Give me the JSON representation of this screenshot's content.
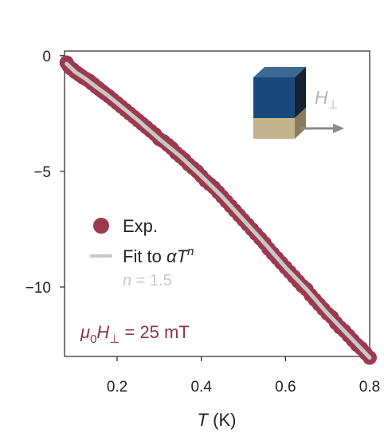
{
  "chart_data": {
    "type": "scatter",
    "xlabel_symbol": "T",
    "xlabel_unit": "(K)",
    "ylabel": "",
    "xlim": [
      0.075,
      0.8
    ],
    "ylim": [
      -13,
      0.2
    ],
    "xticks": [
      0.2,
      0.4,
      0.6,
      0.8
    ],
    "xtick_labels": [
      "0.2",
      "0.4",
      "0.6",
      "0.8"
    ],
    "yticks": [
      0,
      -5,
      -10
    ],
    "ytick_labels": [
      "0",
      "−5",
      "−10"
    ],
    "grid": false,
    "legend_position": "center-left",
    "series": [
      {
        "name": "Exp.",
        "kind": "scatter",
        "color": "#9b3a4f",
        "x": [
          0.08,
          0.085,
          0.09,
          0.095,
          0.1,
          0.105,
          0.11,
          0.115,
          0.12,
          0.125,
          0.13,
          0.135,
          0.14,
          0.145,
          0.15,
          0.155,
          0.16,
          0.165,
          0.17,
          0.18,
          0.19,
          0.2,
          0.21,
          0.22,
          0.23,
          0.24,
          0.25,
          0.26,
          0.27,
          0.28,
          0.29,
          0.3,
          0.31,
          0.32,
          0.33,
          0.34,
          0.35,
          0.36,
          0.37,
          0.38,
          0.39,
          0.4,
          0.41,
          0.42,
          0.43,
          0.44,
          0.45,
          0.46,
          0.47,
          0.48,
          0.49,
          0.5,
          0.51,
          0.52,
          0.53,
          0.54,
          0.55,
          0.56,
          0.57,
          0.58,
          0.59,
          0.6,
          0.61,
          0.62,
          0.63,
          0.64,
          0.65,
          0.66,
          0.67,
          0.68,
          0.69,
          0.7,
          0.71,
          0.72,
          0.73,
          0.74,
          0.75,
          0.76,
          0.77,
          0.78,
          0.79,
          0.8
        ],
        "y": [
          -0.3,
          -0.45,
          -0.55,
          -0.6,
          -0.7,
          -0.75,
          -0.82,
          -0.88,
          -0.95,
          -1.0,
          -1.05,
          -1.1,
          -1.2,
          -1.25,
          -1.35,
          -1.4,
          -1.48,
          -1.55,
          -1.62,
          -1.75,
          -1.9,
          -2.05,
          -2.2,
          -2.35,
          -2.5,
          -2.65,
          -2.8,
          -2.95,
          -3.1,
          -3.25,
          -3.4,
          -3.6,
          -3.7,
          -3.85,
          -4.0,
          -4.2,
          -4.35,
          -4.5,
          -4.7,
          -4.85,
          -5.0,
          -5.2,
          -5.4,
          -5.55,
          -5.7,
          -5.9,
          -6.1,
          -6.3,
          -6.5,
          -6.7,
          -6.9,
          -7.1,
          -7.3,
          -7.5,
          -7.7,
          -7.9,
          -8.1,
          -8.35,
          -8.55,
          -8.75,
          -8.95,
          -9.15,
          -9.35,
          -9.55,
          -9.75,
          -9.95,
          -10.1,
          -10.35,
          -10.55,
          -10.75,
          -10.95,
          -11.15,
          -11.3,
          -11.55,
          -11.75,
          -11.9,
          -12.1,
          -12.3,
          -12.5,
          -12.65,
          -12.85,
          -13.05
        ]
      },
      {
        "name": "Fit to αTⁿ",
        "kind": "line",
        "color": "#c8c8c8",
        "x": [
          0.08,
          0.1,
          0.125,
          0.15,
          0.175,
          0.2,
          0.25,
          0.3,
          0.35,
          0.4,
          0.45,
          0.5,
          0.55,
          0.6,
          0.65,
          0.7,
          0.75,
          0.8
        ],
        "y": [
          -0.35,
          -0.7,
          -1.0,
          -1.35,
          -1.68,
          -2.05,
          -2.8,
          -3.6,
          -4.35,
          -5.2,
          -6.1,
          -7.1,
          -8.1,
          -9.15,
          -10.1,
          -11.15,
          -12.1,
          -13.05
        ]
      }
    ],
    "legend": [
      {
        "kind": "marker",
        "text": "Exp."
      },
      {
        "kind": "line",
        "text_prefix": "Fit to ",
        "text_italic": "αT",
        "text_sup": "n"
      }
    ],
    "annotations": {
      "fit_exponent": {
        "symbol": "n",
        "text": " = 1.5"
      },
      "field": {
        "prefix": "μ",
        "sub0": "0",
        "symbol": "H",
        "sub1": "⊥",
        "text": " = 25 mT"
      },
      "inset_label": {
        "symbol": "H",
        "sub": "⊥"
      }
    },
    "colors": {
      "points": "#9b3a4f",
      "fit": "#c8c8c8",
      "annotation_gray": "#b5b5b5",
      "field_text": "#8e3449",
      "slab_top": "#3d6a92",
      "slab_front": "#1a4a7c",
      "slab_side": "#162230",
      "base_front": "#c2b38e",
      "arrow": "#8a8a8a"
    }
  }
}
